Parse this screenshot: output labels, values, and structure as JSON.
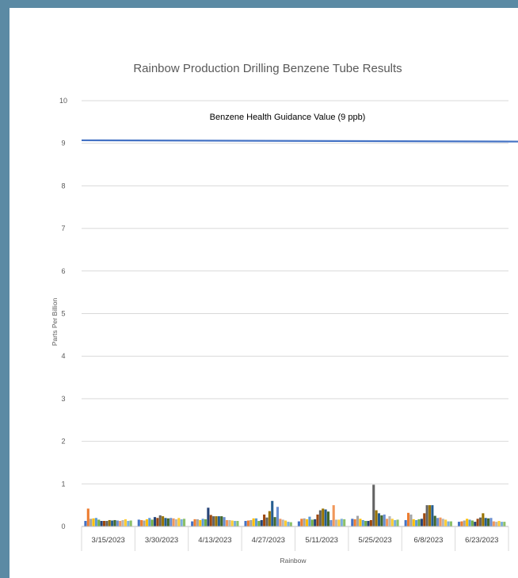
{
  "chart_data": {
    "type": "bar",
    "title": "Rainbow Production Drilling Benzene Tube Results",
    "xlabel": "Rainbow",
    "ylabel": "Parts Per Billion",
    "ylim": [
      0,
      10
    ],
    "yticks": [
      0,
      1,
      2,
      3,
      4,
      5,
      6,
      7,
      8,
      9,
      10
    ],
    "grid": true,
    "legend": "none",
    "categories": [
      "3/15/2023",
      "3/30/2023",
      "4/13/2023",
      "4/27/2023",
      "5/11/2023",
      "5/25/2023",
      "6/8/2023",
      "6/23/2023"
    ],
    "series_colors": [
      "#4472c4",
      "#ed7d31",
      "#a5a5a5",
      "#ffc000",
      "#5b9bd5",
      "#70ad47",
      "#264478",
      "#9e480e",
      "#636363",
      "#997300",
      "#255e91",
      "#43682b",
      "#698ed0",
      "#f1975a",
      "#b7b7b7",
      "#ffcd33",
      "#7cafdd",
      "#8cc168"
    ],
    "series": [
      {
        "values": [
          0.13,
          0.16,
          0.12,
          0.13,
          0.12,
          0.18,
          0.15,
          0.11
        ]
      },
      {
        "values": [
          0.42,
          0.15,
          0.17,
          0.14,
          0.18,
          0.17,
          0.32,
          0.12
        ]
      },
      {
        "values": [
          0.18,
          0.14,
          0.17,
          0.15,
          0.19,
          0.25,
          0.28,
          0.14
        ]
      },
      {
        "values": [
          0.19,
          0.17,
          0.15,
          0.19,
          0.17,
          0.18,
          0.17,
          0.18
        ]
      },
      {
        "values": [
          0.2,
          0.2,
          0.18,
          0.19,
          0.23,
          0.15,
          0.15,
          0.16
        ]
      },
      {
        "values": [
          0.16,
          0.16,
          0.17,
          0.13,
          0.16,
          0.13,
          0.17,
          0.14
        ]
      },
      {
        "values": [
          0.13,
          0.22,
          0.44,
          0.15,
          0.17,
          0.13,
          0.18,
          0.11
        ]
      },
      {
        "values": [
          0.13,
          0.2,
          0.27,
          0.28,
          0.28,
          0.15,
          0.31,
          0.18
        ]
      },
      {
        "values": [
          0.13,
          0.26,
          0.24,
          0.21,
          0.38,
          0.98,
          0.5,
          0.21
        ]
      },
      {
        "values": [
          0.15,
          0.24,
          0.24,
          0.36,
          0.42,
          0.38,
          0.5,
          0.31
        ]
      },
      {
        "values": [
          0.14,
          0.2,
          0.24,
          0.6,
          0.4,
          0.31,
          0.5,
          0.2
        ]
      },
      {
        "values": [
          0.15,
          0.19,
          0.24,
          0.22,
          0.35,
          0.26,
          0.25,
          0.19
        ]
      },
      {
        "values": [
          0.14,
          0.2,
          0.22,
          0.46,
          0.15,
          0.28,
          0.2,
          0.2
        ]
      },
      {
        "values": [
          0.13,
          0.19,
          0.15,
          0.18,
          0.5,
          0.18,
          0.21,
          0.12
        ]
      },
      {
        "values": [
          0.15,
          0.17,
          0.15,
          0.16,
          0.16,
          0.24,
          0.18,
          0.11
        ]
      },
      {
        "values": [
          0.17,
          0.2,
          0.14,
          0.14,
          0.16,
          0.18,
          0.16,
          0.13
        ]
      },
      {
        "values": [
          0.13,
          0.17,
          0.13,
          0.11,
          0.18,
          0.15,
          0.12,
          0.11
        ]
      },
      {
        "values": [
          0.14,
          0.18,
          0.13,
          0.1,
          0.17,
          0.16,
          0.12,
          0.11
        ]
      }
    ],
    "reference_line": {
      "label": "Benzene Health Guidance Value (9 ppb)",
      "value_start": 9.07,
      "value_end": 9.04,
      "color": "#4472c4"
    }
  }
}
